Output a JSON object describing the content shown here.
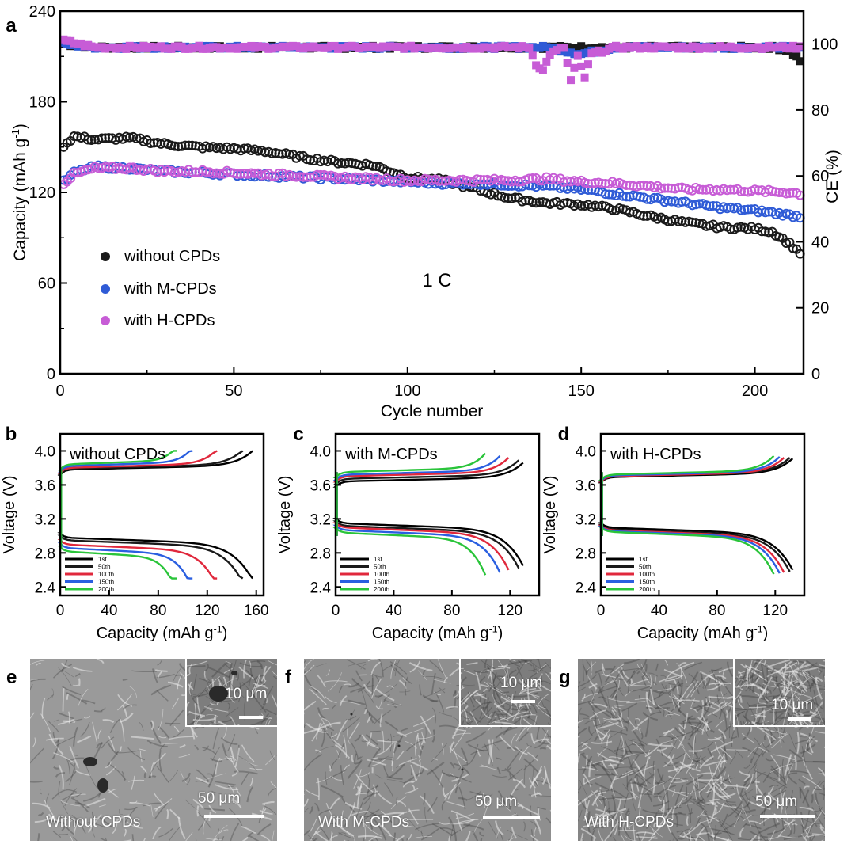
{
  "colors": {
    "without": "#1a1a1a",
    "m_cpds": "#2f5bd6",
    "h_cpds": "#c75cd6",
    "curve_1st": "#000000",
    "curve_50th": "#1a1a1a",
    "curve_100th": "#e0283c",
    "curve_150th": "#2a5fe0",
    "curve_200th": "#2ac43a"
  },
  "panel_letters": [
    "a",
    "b",
    "c",
    "d",
    "e",
    "f",
    "g"
  ],
  "chart_data": [
    {
      "id": "a",
      "type": "scatter",
      "xlabel": "Cycle number",
      "ylabel_left": "Capacity (mAh g",
      "ylabel_left_sup": "-1",
      "ylabel_left_end": ")",
      "ylabel_right": "CE (%)",
      "xlim": [
        0,
        214
      ],
      "ylim_left": [
        0,
        240
      ],
      "ylim_right": [
        0,
        110
      ],
      "x_ticks": [
        0,
        50,
        100,
        150,
        200
      ],
      "y_ticks_left": [
        0,
        60,
        120,
        180,
        240
      ],
      "y_ticks_right": [
        0,
        20,
        40,
        60,
        80,
        100
      ],
      "annotation": "1 C",
      "legend_position": "bottom-left",
      "series": [
        {
          "name": "without CPDs",
          "color_key": "without",
          "axis": "left",
          "points": [
            [
              1,
              151
            ],
            [
              4,
              157
            ],
            [
              10,
              155
            ],
            [
              20,
              156
            ],
            [
              30,
              152
            ],
            [
              40,
              150
            ],
            [
              50,
              149
            ],
            [
              60,
              147
            ],
            [
              70,
              143
            ],
            [
              80,
              140
            ],
            [
              90,
              138
            ],
            [
              100,
              130
            ],
            [
              110,
              128
            ],
            [
              120,
              122
            ],
            [
              130,
              116
            ],
            [
              140,
              113
            ],
            [
              150,
              112
            ],
            [
              160,
              109
            ],
            [
              170,
              104
            ],
            [
              180,
              100
            ],
            [
              190,
              97
            ],
            [
              200,
              96
            ],
            [
              205,
              94
            ],
            [
              210,
              86
            ],
            [
              213,
              80
            ]
          ]
        },
        {
          "name": "with M-CPDs",
          "color_key": "m_cpds",
          "axis": "left",
          "points": [
            [
              1,
              127
            ],
            [
              4,
              133
            ],
            [
              10,
              137
            ],
            [
              20,
              136
            ],
            [
              30,
              134
            ],
            [
              40,
              133
            ],
            [
              50,
              132
            ],
            [
              60,
              131
            ],
            [
              70,
              130
            ],
            [
              80,
              129
            ],
            [
              90,
              128
            ],
            [
              100,
              127
            ],
            [
              110,
              126
            ],
            [
              120,
              126
            ],
            [
              130,
              125
            ],
            [
              140,
              124
            ],
            [
              150,
              122
            ],
            [
              160,
              119
            ],
            [
              170,
              116
            ],
            [
              180,
              113
            ],
            [
              190,
              110
            ],
            [
              200,
              108
            ],
            [
              210,
              105
            ],
            [
              213,
              104
            ]
          ]
        },
        {
          "name": "with H-CPDs",
          "color_key": "h_cpds",
          "axis": "left",
          "points": [
            [
              1,
              126
            ],
            [
              4,
              132
            ],
            [
              10,
              136
            ],
            [
              20,
              136
            ],
            [
              30,
              134
            ],
            [
              40,
              134
            ],
            [
              50,
              133
            ],
            [
              60,
              132
            ],
            [
              70,
              131
            ],
            [
              80,
              130
            ],
            [
              90,
              129
            ],
            [
              100,
              128
            ],
            [
              110,
              128
            ],
            [
              120,
              128
            ],
            [
              130,
              128
            ],
            [
              140,
              129
            ],
            [
              150,
              127
            ],
            [
              160,
              126
            ],
            [
              170,
              124
            ],
            [
              180,
              122
            ],
            [
              190,
              122
            ],
            [
              200,
              121
            ],
            [
              210,
              120
            ],
            [
              213,
              119
            ]
          ]
        }
      ],
      "ce_series": [
        {
          "color_key": "without",
          "points": [
            [
              1,
              100
            ],
            [
              10,
              99
            ],
            [
              30,
              99
            ],
            [
              50,
              99
            ],
            [
              70,
              99
            ],
            [
              90,
              99
            ],
            [
              110,
              99
            ],
            [
              130,
              99
            ],
            [
              150,
              99
            ],
            [
              170,
              99
            ],
            [
              190,
              99
            ],
            [
              205,
              99
            ],
            [
              210,
              98
            ],
            [
              213,
              95
            ]
          ]
        },
        {
          "color_key": "m_cpds",
          "points": [
            [
              1,
              100
            ],
            [
              10,
              99
            ],
            [
              30,
              99
            ],
            [
              50,
              99
            ],
            [
              70,
              99
            ],
            [
              90,
              99
            ],
            [
              110,
              99
            ],
            [
              130,
              99
            ],
            [
              140,
              99
            ],
            [
              150,
              97
            ],
            [
              160,
              99
            ],
            [
              180,
              99
            ],
            [
              200,
              99
            ],
            [
              213,
              99
            ]
          ]
        },
        {
          "color_key": "h_cpds",
          "points": [
            [
              1,
              101
            ],
            [
              10,
              99
            ],
            [
              30,
              99
            ],
            [
              50,
              99
            ],
            [
              70,
              99
            ],
            [
              90,
              99
            ],
            [
              110,
              99
            ],
            [
              130,
              99
            ],
            [
              135,
              99
            ],
            [
              137,
              94
            ],
            [
              139,
              92
            ],
            [
              141,
              97
            ],
            [
              145,
              99
            ],
            [
              147,
              89
            ],
            [
              149,
              96
            ],
            [
              151,
              90
            ],
            [
              153,
              97
            ],
            [
              160,
              99
            ],
            [
              180,
              99
            ],
            [
              200,
              99
            ],
            [
              213,
              99
            ]
          ]
        }
      ]
    },
    {
      "id": "b",
      "type": "line",
      "title": "without CPDs",
      "xlabel": "Capacity (mAh g",
      "xlabel_sup": "-1",
      "xlabel_end": ")",
      "ylabel": "Voltage (V)",
      "xlim": [
        0,
        166
      ],
      "ylim": [
        2.3,
        4.2
      ],
      "x_ticks": [
        0,
        40,
        80,
        120,
        160
      ],
      "y_ticks": [
        2.4,
        2.8,
        3.2,
        3.6,
        4.0
      ],
      "legend": [
        "1st",
        "50th",
        "100th",
        "150th",
        "200th"
      ],
      "curves": [
        {
          "cycle": "1st",
          "color_key": "curve_1st",
          "capacity": 157,
          "charge_v": 3.78,
          "discharge_v": 2.98
        },
        {
          "cycle": "50th",
          "color_key": "curve_50th",
          "capacity": 149,
          "charge_v": 3.79,
          "discharge_v": 2.95
        },
        {
          "cycle": "100th",
          "color_key": "curve_100th",
          "capacity": 128,
          "charge_v": 3.8,
          "discharge_v": 2.9
        },
        {
          "cycle": "150th",
          "color_key": "curve_150th",
          "capacity": 108,
          "charge_v": 3.82,
          "discharge_v": 2.86
        },
        {
          "cycle": "200th",
          "color_key": "curve_200th",
          "capacity": 95,
          "charge_v": 3.84,
          "discharge_v": 2.82
        }
      ]
    },
    {
      "id": "c",
      "type": "line",
      "title": "with M-CPDs",
      "xlabel": "Capacity (mAh g",
      "xlabel_sup": "-1",
      "xlabel_end": ")",
      "ylabel": "Voltage (V)",
      "xlim": [
        0,
        140
      ],
      "ylim": [
        2.3,
        4.2
      ],
      "x_ticks": [
        0,
        40,
        80,
        120
      ],
      "y_ticks": [
        2.4,
        2.8,
        3.2,
        3.6,
        4.0
      ],
      "legend": [
        "1st",
        "50th",
        "100th",
        "150th",
        "200th"
      ],
      "curves": [
        {
          "cycle": "1st",
          "color_key": "curve_1st",
          "capacity": 129,
          "charge_v": 3.64,
          "discharge_v": 3.15
        },
        {
          "cycle": "50th",
          "color_key": "curve_50th",
          "capacity": 126,
          "charge_v": 3.67,
          "discharge_v": 3.12
        },
        {
          "cycle": "100th",
          "color_key": "curve_100th",
          "capacity": 119,
          "charge_v": 3.7,
          "discharge_v": 3.1
        },
        {
          "cycle": "150th",
          "color_key": "curve_150th",
          "capacity": 113,
          "charge_v": 3.72,
          "discharge_v": 3.07
        },
        {
          "cycle": "200th",
          "color_key": "curve_200th",
          "capacity": 103,
          "charge_v": 3.75,
          "discharge_v": 3.04
        }
      ]
    },
    {
      "id": "d",
      "type": "line",
      "title": "with H-CPDs",
      "xlabel": "Capacity (mAh g",
      "xlabel_sup": "-1",
      "xlabel_end": ")",
      "ylabel": "Voltage (V)",
      "xlim": [
        0,
        140
      ],
      "ylim": [
        2.3,
        4.2
      ],
      "x_ticks": [
        0,
        40,
        80,
        120
      ],
      "y_ticks": [
        2.4,
        2.8,
        3.2,
        3.6,
        4.0
      ],
      "legend": [
        "1st",
        "50th",
        "100th",
        "150th",
        "200th"
      ],
      "curves": [
        {
          "cycle": "1st",
          "color_key": "curve_1st",
          "capacity": 132,
          "charge_v": 3.69,
          "discharge_v": 3.1
        },
        {
          "cycle": "50th",
          "color_key": "curve_50th",
          "capacity": 130,
          "charge_v": 3.7,
          "discharge_v": 3.08
        },
        {
          "cycle": "100th",
          "color_key": "curve_100th",
          "capacity": 126,
          "charge_v": 3.7,
          "discharge_v": 3.07
        },
        {
          "cycle": "150th",
          "color_key": "curve_150th",
          "capacity": 123,
          "charge_v": 3.71,
          "discharge_v": 3.06
        },
        {
          "cycle": "200th",
          "color_key": "curve_200th",
          "capacity": 119,
          "charge_v": 3.72,
          "discharge_v": 3.05
        }
      ]
    }
  ],
  "sem_panels": [
    {
      "id": "e",
      "label": "Without CPDs",
      "scale_main": "50 μm",
      "scale_inset": "10 μm",
      "tone": "#9a9a9a"
    },
    {
      "id": "f",
      "label": "With  M-CPDs",
      "scale_main": "50 μm",
      "scale_inset": "10 μm",
      "tone": "#8f8f8f"
    },
    {
      "id": "g",
      "label": "With H-CPDs",
      "scale_main": "50 μm",
      "scale_inset": "10 μm",
      "tone": "#858585"
    }
  ]
}
